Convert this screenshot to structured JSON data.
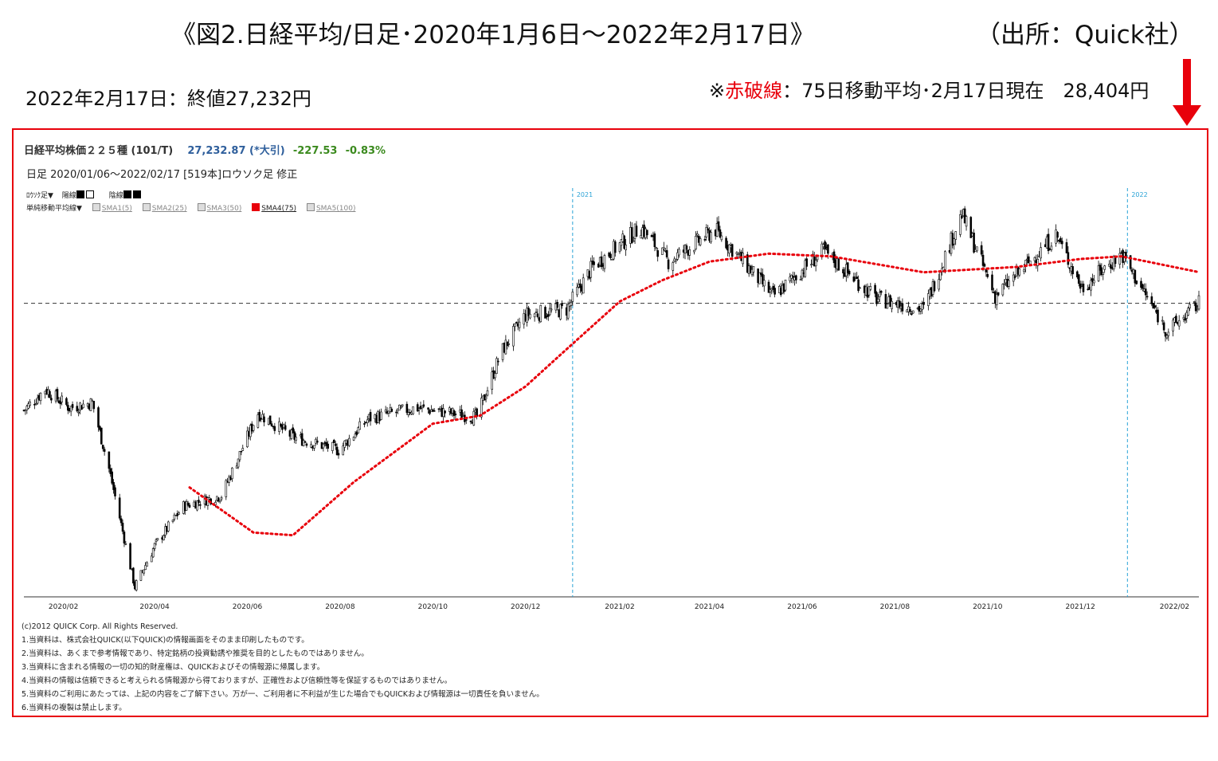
{
  "header": {
    "title": "《図2.日経平均/日足･2020年1月6日～2022年2月17日》",
    "source": "（出所：Quick社）",
    "close_note": "2022年2月17日：終値27,232円",
    "ma_note_prefix": "※",
    "ma_note_red": "赤破線",
    "ma_note_rest": "：75日移動平均･2月17日現在　28,404円"
  },
  "quote": {
    "name": "日経平均株価２２５種 (101/T)",
    "price": "27,232.87 (*大引)",
    "change": "-227.53",
    "change_pct": "-0.83%",
    "period": "日足  2020/01/06～2022/02/17 [519本]ロウソク足 修正"
  },
  "legend": {
    "row1_label": "ﾛｳｿｸ足▼",
    "up_label": "陽線",
    "down_label": "陰線",
    "row2_label": "単純移動平均線▼",
    "sma": [
      "SMA1(5)",
      "SMA2(25)",
      "SMA3(50)",
      "SMA4(75)",
      "SMA5(100)"
    ]
  },
  "chart_data": {
    "type": "candlestick",
    "title": "日経平均株価２２５種 (101/T)",
    "x_ticks": [
      "2020/02",
      "2020/04",
      "2020/06",
      "2020/08",
      "2020/10",
      "2020/12",
      "2021/02",
      "2021/04",
      "2021/06",
      "2021/08",
      "2021/10",
      "2021/12",
      "2022/02"
    ],
    "year_markers": [
      "2021",
      "2022"
    ],
    "reference_close": 27232,
    "ylim": [
      16300,
      31000
    ],
    "approx_close_path": [
      {
        "date": "2020/01/06",
        "close": 23200
      },
      {
        "date": "2020/01/20",
        "close": 24000
      },
      {
        "date": "2020/02/05",
        "close": 23300
      },
      {
        "date": "2020/02/20",
        "close": 23500
      },
      {
        "date": "2020/03/02",
        "close": 21000
      },
      {
        "date": "2020/03/19",
        "close": 16550
      },
      {
        "date": "2020/04/01",
        "close": 18100
      },
      {
        "date": "2020/04/20",
        "close": 19600
      },
      {
        "date": "2020/05/15",
        "close": 20000
      },
      {
        "date": "2020/06/08",
        "close": 23100
      },
      {
        "date": "2020/07/01",
        "close": 22200
      },
      {
        "date": "2020/07/31",
        "close": 21700
      },
      {
        "date": "2020/08/20",
        "close": 22900
      },
      {
        "date": "2020/09/20",
        "close": 23300
      },
      {
        "date": "2020/10/30",
        "close": 22950
      },
      {
        "date": "2020/11/15",
        "close": 25400
      },
      {
        "date": "2020/12/01",
        "close": 26800
      },
      {
        "date": "2020/12/28",
        "close": 27000
      },
      {
        "date": "2021/01/14",
        "close": 28600
      },
      {
        "date": "2021/02/15",
        "close": 30100
      },
      {
        "date": "2021/03/05",
        "close": 28800
      },
      {
        "date": "2021/04/05",
        "close": 30000
      },
      {
        "date": "2021/05/13",
        "close": 27500
      },
      {
        "date": "2021/06/15",
        "close": 29200
      },
      {
        "date": "2021/07/20",
        "close": 27400
      },
      {
        "date": "2021/08/20",
        "close": 27000
      },
      {
        "date": "2021/09/14",
        "close": 30600
      },
      {
        "date": "2021/10/06",
        "close": 27500
      },
      {
        "date": "2021/11/15",
        "close": 29800
      },
      {
        "date": "2021/12/02",
        "close": 27800
      },
      {
        "date": "2021/12/28",
        "close": 29100
      },
      {
        "date": "2022/01/27",
        "close": 26170
      },
      {
        "date": "2022/02/17",
        "close": 27232
      }
    ],
    "series": [
      {
        "name": "SMA4(75)",
        "style": "red-dotted",
        "points": [
          {
            "date": "2020/04/24",
            "value": 20300
          },
          {
            "date": "2020/06/05",
            "value": 18600
          },
          {
            "date": "2020/07/01",
            "value": 18500
          },
          {
            "date": "2020/08/10",
            "value": 20500
          },
          {
            "date": "2020/10/01",
            "value": 22700
          },
          {
            "date": "2020/11/01",
            "value": 23000
          },
          {
            "date": "2020/12/01",
            "value": 24100
          },
          {
            "date": "2020/12/28",
            "value": 25500
          },
          {
            "date": "2021/02/01",
            "value": 27300
          },
          {
            "date": "2021/03/01",
            "value": 28100
          },
          {
            "date": "2021/04/01",
            "value": 28800
          },
          {
            "date": "2021/05/10",
            "value": 29100
          },
          {
            "date": "2021/06/20",
            "value": 29000
          },
          {
            "date": "2021/08/20",
            "value": 28400
          },
          {
            "date": "2021/09/20",
            "value": 28500
          },
          {
            "date": "2021/10/20",
            "value": 28600
          },
          {
            "date": "2021/12/01",
            "value": 28900
          },
          {
            "date": "2021/12/28",
            "value": 29000
          },
          {
            "date": "2022/02/17",
            "value": 28404
          }
        ]
      }
    ],
    "grid": false
  },
  "footer": [
    "(c)2012 QUICK Corp. All Rights Reserved.",
    "1.当資料は、株式会社QUICK(以下QUICK)の情報画面をそのまま印刷したものです。",
    "2.当資料は、あくまで参考情報であり、特定銘柄の投資勧誘や推奨を目的としたものではありません。",
    "3.当資料に含まれる情報の一切の知的財産権は、QUICKおよびその情報源に帰属します。",
    "4.当資料の情報は信頼できると考えられる情報源から得ておりますが、正確性および信頼性等を保証するものではありません。",
    "5.当資料のご利用にあたっては、上記の内容をご了解下さい。万が一、ご利用者に不利益が生じた場合でもQUICKおよび情報源は一切責任を負いません。",
    "6.当資料の複製は禁止します。"
  ],
  "colors": {
    "frame": "#e8000b",
    "sma": "#e8000b",
    "price": "#2f5f9c",
    "change": "#3b8a1e",
    "year_line": "#2aa3d6"
  }
}
